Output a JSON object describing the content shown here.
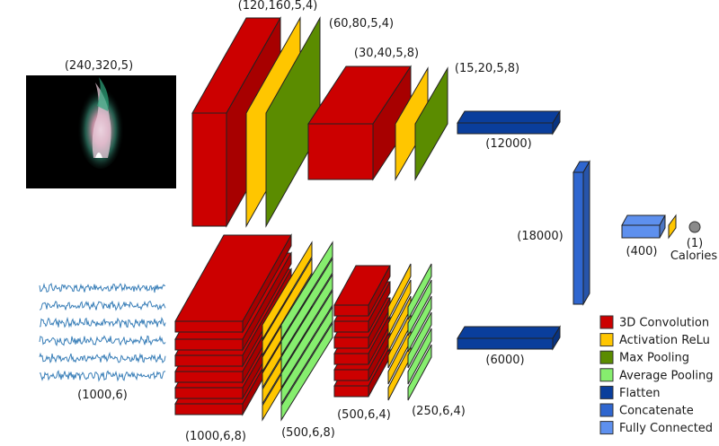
{
  "colors": {
    "conv3d": "#cc0000",
    "relu": "#ffc600",
    "maxpool": "#5b8c00",
    "avgpool": "#86ee6e",
    "flatten": "#0a3e9c",
    "concatenate": "#2f66cf",
    "fully_connected": "#5e90ee",
    "output_node": "#8a8a8a",
    "signal": "#3a7fb8",
    "video_bg": "#000000"
  },
  "video_branch": {
    "input_label": "(240,320,5)",
    "conv_label": "(120,160,5,4)",
    "pool_label": "(60,80,5,4)",
    "conv2_label": "(30,40,5,8)",
    "pool2_label": "(15,20,5,8)",
    "flatten_label": "(12000)"
  },
  "signal_branch": {
    "input_label": "(1000,6)",
    "conv_label": "(1000,6,8)",
    "pool_label": "(500,6,8)",
    "conv2_label": "(500,6,4)",
    "pool2_label": "(250,6,4)",
    "flatten_label": "(6000)",
    "channels": 6
  },
  "concatenate_label": "(18000)",
  "fc_label": "(400)",
  "output": {
    "size_label": "(1)",
    "name": "Calories"
  },
  "legend": {
    "items": [
      {
        "key": "conv3d",
        "label": "3D Convolution",
        "color": "#cc0000"
      },
      {
        "key": "relu",
        "label": "Activation ReLu",
        "color": "#ffc600"
      },
      {
        "key": "maxpool",
        "label": "Max Pooling",
        "color": "#5b8c00"
      },
      {
        "key": "avgpool",
        "label": "Average Pooling",
        "color": "#86ee6e"
      },
      {
        "key": "flatten",
        "label": "Flatten",
        "color": "#0a3e9c"
      },
      {
        "key": "concatenate",
        "label": "Concatenate",
        "color": "#2f66cf"
      },
      {
        "key": "fc",
        "label": "Fully Connected",
        "color": "#5e90ee"
      }
    ]
  }
}
